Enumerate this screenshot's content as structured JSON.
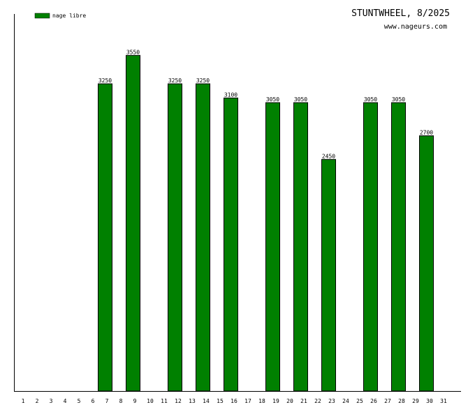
{
  "chart_data": {
    "type": "bar",
    "title": "STUNTWHEEL, 8/2025",
    "subtitle": "www.nageurs.com",
    "xlabel": "",
    "ylabel": "",
    "legend": {
      "position": "top-left",
      "entries": [
        {
          "name": "nage libre",
          "color": "#008000"
        }
      ]
    },
    "grid": false,
    "categories": [
      "1",
      "2",
      "3",
      "4",
      "5",
      "6",
      "7",
      "8",
      "9",
      "10",
      "11",
      "12",
      "13",
      "14",
      "15",
      "16",
      "17",
      "18",
      "19",
      "20",
      "21",
      "22",
      "23",
      "24",
      "25",
      "26",
      "27",
      "28",
      "29",
      "30",
      "31"
    ],
    "series": [
      {
        "name": "nage libre",
        "color": "#008000",
        "values": [
          0,
          0,
          0,
          0,
          0,
          0,
          3250,
          0,
          3550,
          0,
          0,
          3250,
          0,
          3250,
          0,
          3100,
          0,
          0,
          3050,
          0,
          3050,
          0,
          2450,
          0,
          0,
          3050,
          0,
          3050,
          0,
          2700,
          0
        ]
      }
    ],
    "ylim": [
      0,
      4000
    ]
  }
}
